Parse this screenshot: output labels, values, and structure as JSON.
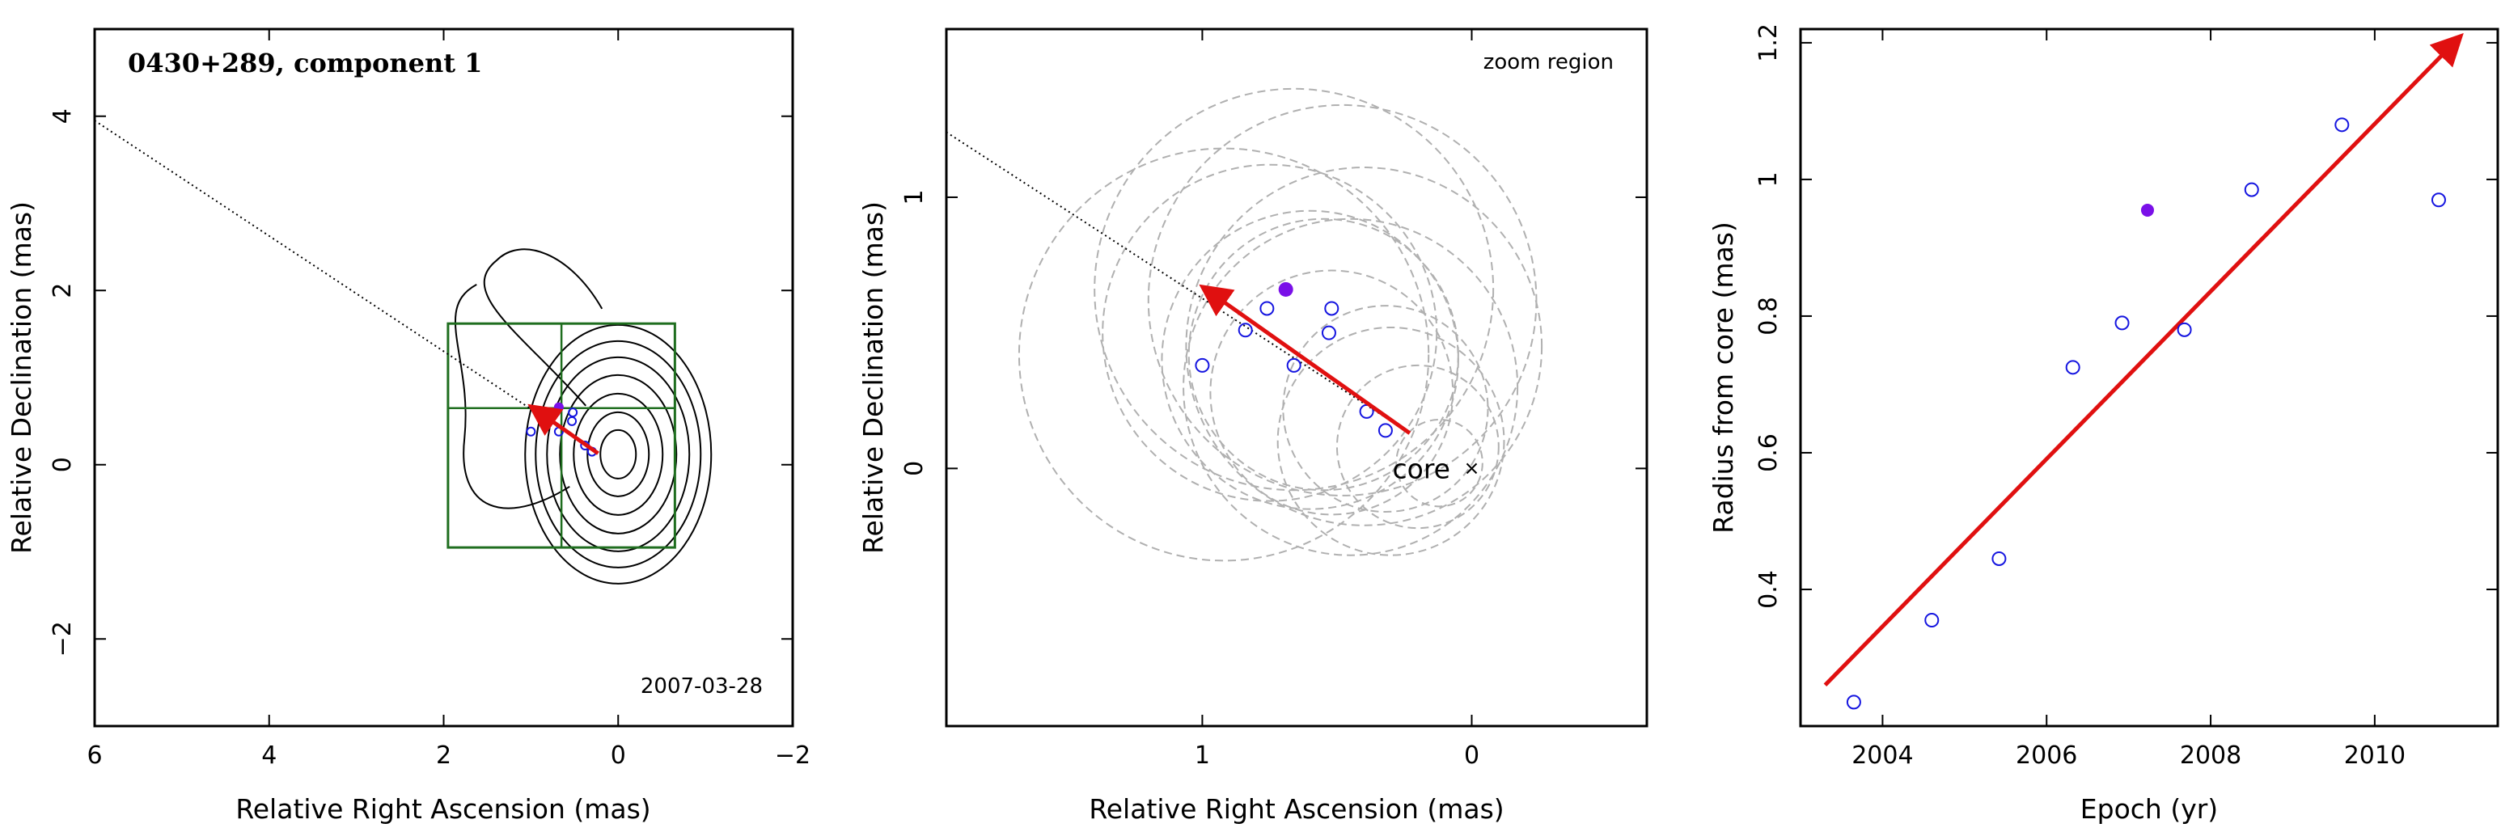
{
  "colors": {
    "arrow": "#e01010",
    "points": "#1515e0",
    "highlight": "#7a10e8",
    "box": "#1f6e1f",
    "circles": "#b0b0b0",
    "contour": "#000000"
  },
  "chart_data": [
    {
      "id": "map",
      "type": "scatter",
      "title": "0430+289, component 1",
      "date_label": "2007-03-28",
      "xlabel": "Relative Right Ascension (mas)",
      "ylabel": "Relative Declination (mas)",
      "xlim": [
        6,
        -2
      ],
      "ylim": [
        -3,
        5
      ],
      "xticks": [
        6,
        4,
        2,
        0,
        -2
      ],
      "yticks": [
        -2,
        0,
        2,
        4
      ],
      "xtick_labels": [
        "6",
        "4",
        "2",
        "0",
        "−2"
      ],
      "ytick_labels": [
        "−2",
        "0",
        "2",
        "4"
      ],
      "points": [
        [
          1.0,
          0.38
        ],
        [
          0.8,
          0.52
        ],
        [
          0.72,
          0.6
        ],
        [
          0.68,
          0.38
        ],
        [
          0.53,
          0.5
        ],
        [
          0.52,
          0.6
        ],
        [
          0.38,
          0.22
        ],
        [
          0.3,
          0.15
        ]
      ],
      "highlight": [
        0.68,
        0.66
      ],
      "arrow": {
        "from": [
          0.23,
          0.13
        ],
        "to": [
          1.0,
          0.67
        ]
      },
      "trajectory": {
        "from": [
          6,
          3.95
        ],
        "to": [
          0.23,
          0.13
        ]
      },
      "zoom_box": {
        "x": [
          -0.65,
          1.95
        ],
        "y": [
          -0.95,
          1.62
        ],
        "divider_x": 0.65,
        "divider_y": 0.65
      },
      "contour_center": [
        0.0,
        0.12
      ]
    },
    {
      "id": "zoom",
      "type": "scatter",
      "title": "zoom region",
      "core_label": "core",
      "xlabel": "Relative Right Ascension (mas)",
      "ylabel": "Relative Declination (mas)",
      "xlim": [
        1.95,
        -0.65
      ],
      "ylim": [
        -0.95,
        1.62
      ],
      "xticks": [
        1,
        0
      ],
      "yticks": [
        0,
        1
      ],
      "xtick_labels": [
        "1",
        "0"
      ],
      "ytick_labels": [
        "0",
        "1"
      ],
      "points": [
        [
          1.0,
          0.38
        ],
        [
          0.84,
          0.51
        ],
        [
          0.76,
          0.59
        ],
        [
          0.66,
          0.38
        ],
        [
          0.53,
          0.5
        ],
        [
          0.52,
          0.59
        ],
        [
          0.39,
          0.21
        ],
        [
          0.32,
          0.14
        ]
      ],
      "highlight": [
        0.69,
        0.66
      ],
      "arrow": {
        "from": [
          0.23,
          0.13
        ],
        "to": [
          1.0,
          0.67
        ]
      },
      "trajectory": {
        "from": [
          1.95,
          1.24
        ],
        "to": [
          0.23,
          0.13
        ]
      },
      "core": [
        0,
        0
      ],
      "circles": [
        {
          "c": [
            0.92,
            0.42
          ],
          "r": 0.76
        },
        {
          "c": [
            0.66,
            0.66
          ],
          "r": 0.74
        },
        {
          "c": [
            0.48,
            0.62
          ],
          "r": 0.72
        },
        {
          "c": [
            0.75,
            0.5
          ],
          "r": 0.62
        },
        {
          "c": [
            0.4,
            0.45
          ],
          "r": 0.66
        },
        {
          "c": [
            0.45,
            0.3
          ],
          "r": 0.62
        },
        {
          "c": [
            0.6,
            0.4
          ],
          "r": 0.55
        },
        {
          "c": [
            0.55,
            0.42
          ],
          "r": 0.5
        },
        {
          "c": [
            0.52,
            0.28
          ],
          "r": 0.45
        },
        {
          "c": [
            0.3,
            0.1
          ],
          "r": 0.42
        },
        {
          "c": [
            0.32,
            0.22
          ],
          "r": 0.38
        },
        {
          "c": [
            0.2,
            0.08
          ],
          "r": 0.3
        },
        {
          "c": [
            0.12,
            0.02
          ],
          "r": 0.16
        }
      ]
    },
    {
      "id": "radius",
      "type": "scatter",
      "xlabel": "Epoch (yr)",
      "ylabel": "Radius from core (mas)",
      "xlim": [
        2003.0,
        2011.5
      ],
      "ylim": [
        0.2,
        1.22
      ],
      "xticks": [
        2004,
        2006,
        2008,
        2010
      ],
      "yticks": [
        0.4,
        0.6,
        0.8,
        1.0,
        1.2
      ],
      "xtick_labels": [
        "2004",
        "2006",
        "2008",
        "2010"
      ],
      "ytick_labels": [
        "0.4",
        "0.6",
        "0.8",
        "1",
        "1.2"
      ],
      "points": [
        [
          2003.65,
          0.235
        ],
        [
          2004.6,
          0.355
        ],
        [
          2005.42,
          0.445
        ],
        [
          2006.32,
          0.725
        ],
        [
          2006.92,
          0.79
        ],
        [
          2007.68,
          0.78
        ],
        [
          2008.5,
          0.985
        ],
        [
          2009.6,
          1.08
        ],
        [
          2010.78,
          0.97
        ]
      ],
      "highlight": [
        2007.23,
        0.955
      ],
      "fit": {
        "from": [
          2003.3,
          0.26
        ],
        "to": [
          2011.05,
          1.21
        ]
      }
    }
  ]
}
